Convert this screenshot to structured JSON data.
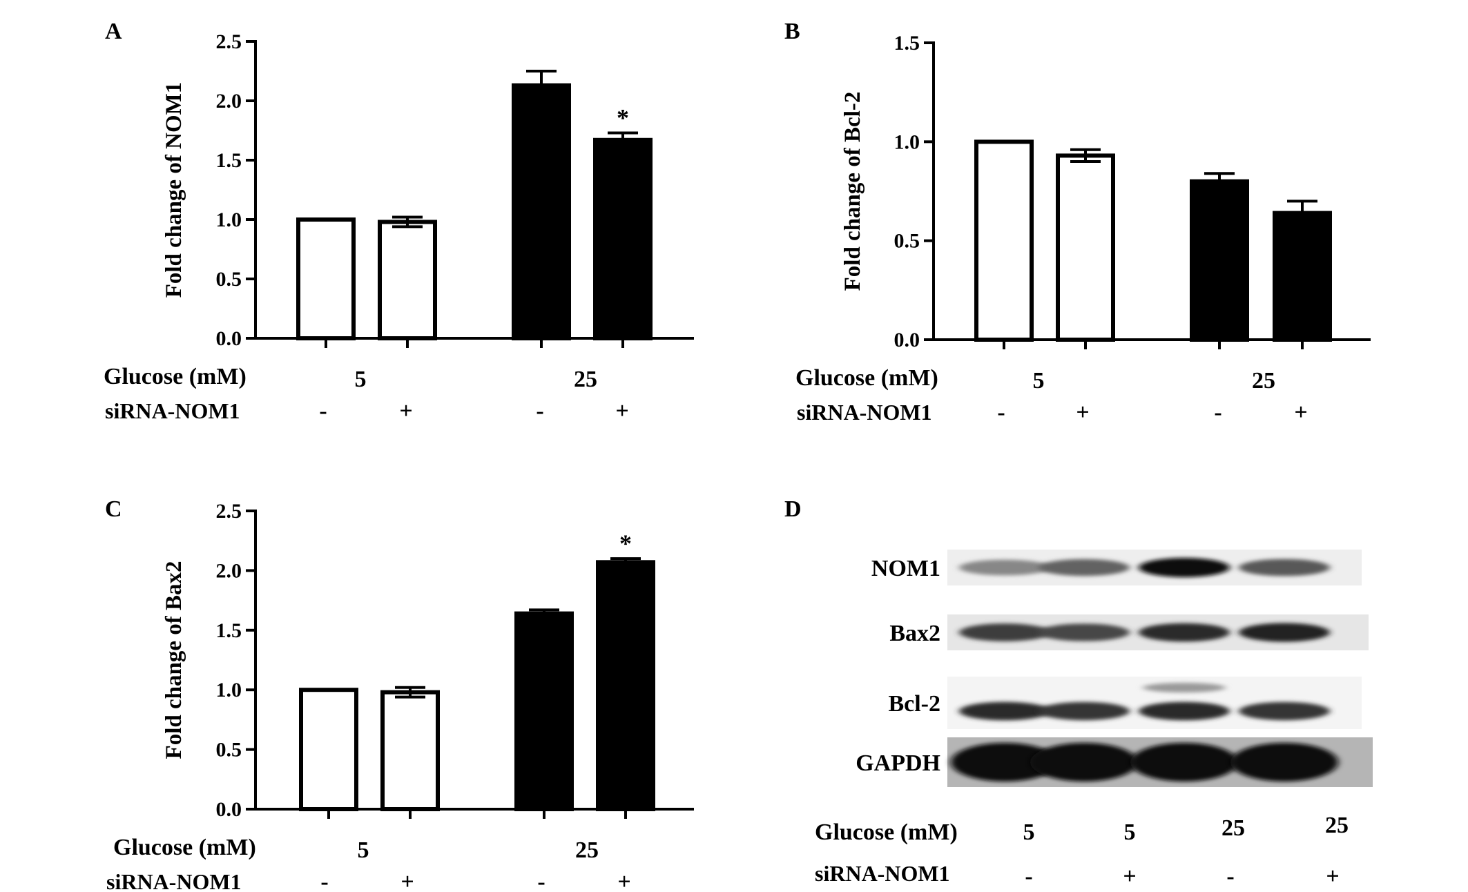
{
  "panels": {
    "A": {
      "letter": "A"
    },
    "B": {
      "letter": "B"
    },
    "C": {
      "letter": "C"
    },
    "D": {
      "letter": "D"
    }
  },
  "chart_data": [
    {
      "panel": "A",
      "type": "bar",
      "ylabel": "Fold change of NOM1",
      "ylim": [
        0,
        2.5
      ],
      "yticks": [
        "0.0",
        "0.5",
        "1.0",
        "1.5",
        "2.0",
        "2.5"
      ],
      "categories": [
        "5 / -",
        "5 / +",
        "25 / -",
        "25 / +"
      ],
      "values": [
        1.0,
        0.98,
        2.13,
        1.67
      ],
      "errors": [
        0.0,
        0.04,
        0.12,
        0.06
      ],
      "fills": [
        "#ffffff",
        "#ffffff",
        "#000000",
        "#000000"
      ],
      "significance": [
        "",
        "",
        "",
        "*"
      ],
      "glucose_label": "Glucose (mM)",
      "glucose_values": [
        "5",
        "25"
      ],
      "sirna_label": "siRNA-NOM1",
      "sirna_values": [
        "-",
        "+",
        "-",
        "+"
      ]
    },
    {
      "panel": "B",
      "type": "bar",
      "ylabel": "Fold change of Bcl-2",
      "ylim": [
        0,
        1.5
      ],
      "yticks": [
        "0.0",
        "0.5",
        "1.0",
        "1.5"
      ],
      "categories": [
        "5 / -",
        "5 / +",
        "25 / -",
        "25 / +"
      ],
      "values": [
        1.0,
        0.93,
        0.8,
        0.64
      ],
      "errors": [
        0.0,
        0.03,
        0.04,
        0.06
      ],
      "fills": [
        "#ffffff",
        "#ffffff",
        "#000000",
        "#000000"
      ],
      "significance": [
        "",
        "",
        "",
        ""
      ],
      "glucose_label": "Glucose (mM)",
      "glucose_values": [
        "5",
        "25"
      ],
      "sirna_label": "siRNA-NOM1",
      "sirna_values": [
        "-",
        "+",
        "-",
        "+"
      ]
    },
    {
      "panel": "C",
      "type": "bar",
      "ylabel": "Fold change of Bax2",
      "ylim": [
        0,
        2.5
      ],
      "yticks": [
        "0.0",
        "0.5",
        "1.0",
        "1.5",
        "2.0",
        "2.5"
      ],
      "categories": [
        "5 / -",
        "5 / +",
        "25 / -",
        "25 / +"
      ],
      "values": [
        1.0,
        0.98,
        1.64,
        2.07
      ],
      "errors": [
        0.0,
        0.04,
        0.03,
        0.03
      ],
      "fills": [
        "#ffffff",
        "#ffffff",
        "#000000",
        "#000000"
      ],
      "significance": [
        "",
        "",
        "",
        "*"
      ],
      "glucose_label": "Glucose (mM)",
      "glucose_values": [
        "5",
        "25"
      ],
      "sirna_label": "siRNA-NOM1",
      "sirna_values": [
        "-",
        "+",
        "-",
        "+"
      ]
    }
  ],
  "western_blot": {
    "rows": [
      {
        "label": "NOM1",
        "intensities": [
          0.35,
          0.55,
          1.0,
          0.6
        ]
      },
      {
        "label": "Bax2",
        "intensities": [
          0.75,
          0.7,
          0.85,
          0.9
        ]
      },
      {
        "label": "Bcl-2",
        "intensities": [
          0.85,
          0.8,
          0.85,
          0.8
        ]
      },
      {
        "label": "GAPDH",
        "intensities": [
          1.0,
          1.0,
          1.0,
          1.0
        ]
      }
    ],
    "glucose_label": "Glucose (mM)",
    "glucose_values": [
      "5",
      "5",
      "25",
      "25"
    ],
    "sirna_label": "siRNA-NOM1",
    "sirna_values": [
      "-",
      "+",
      "-",
      "+"
    ]
  }
}
